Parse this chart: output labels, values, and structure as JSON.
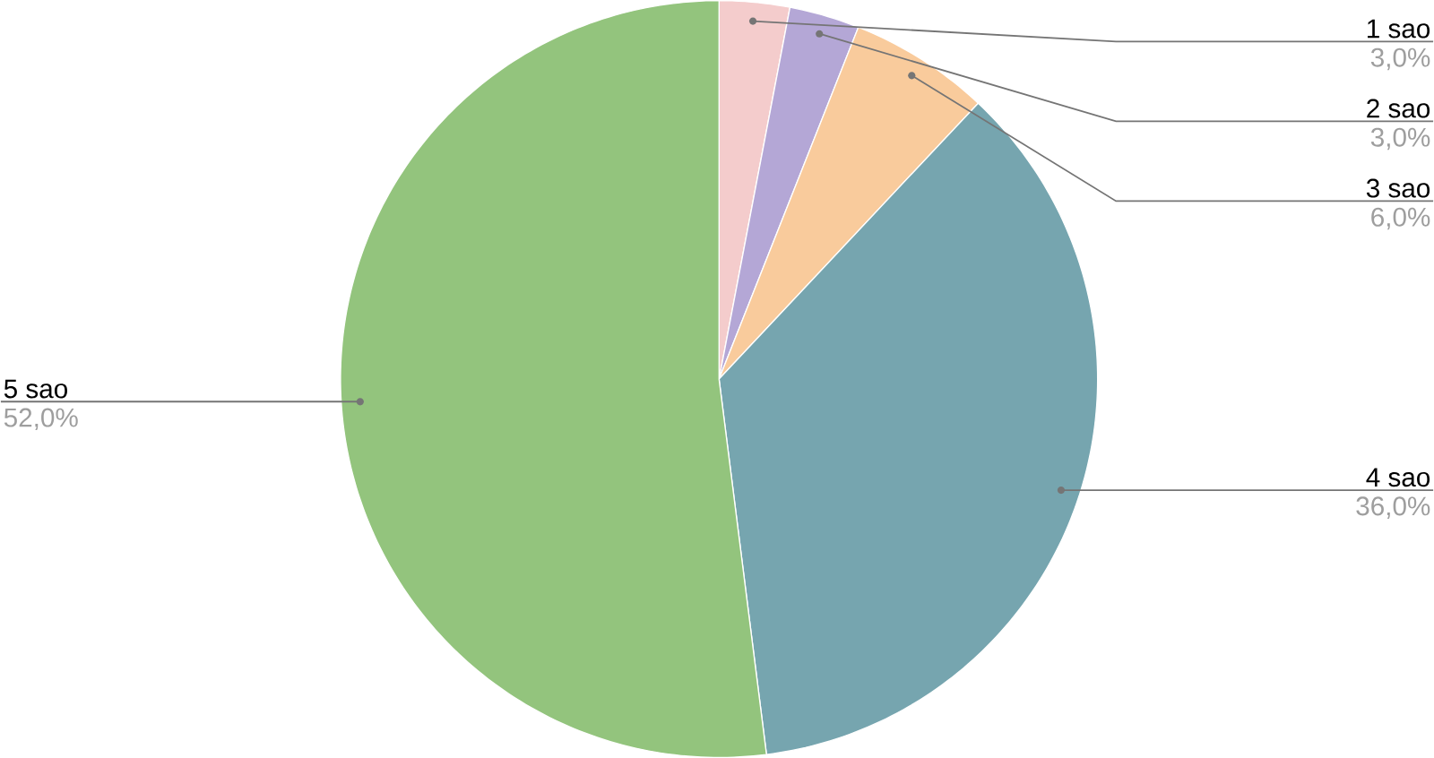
{
  "chart_data": {
    "type": "pie",
    "categories": [
      "1 sao",
      "2 sao",
      "3 sao",
      "4 sao",
      "5 sao"
    ],
    "values": [
      3,
      3,
      6,
      36,
      52
    ],
    "colors": [
      "#f4cccc",
      "#b4a7d6",
      "#f9cb9c",
      "#76a5af",
      "#93c47d"
    ],
    "value_labels": [
      "3,0%",
      "3,0%",
      "6,0%",
      "36,0%",
      "52,0%"
    ]
  }
}
